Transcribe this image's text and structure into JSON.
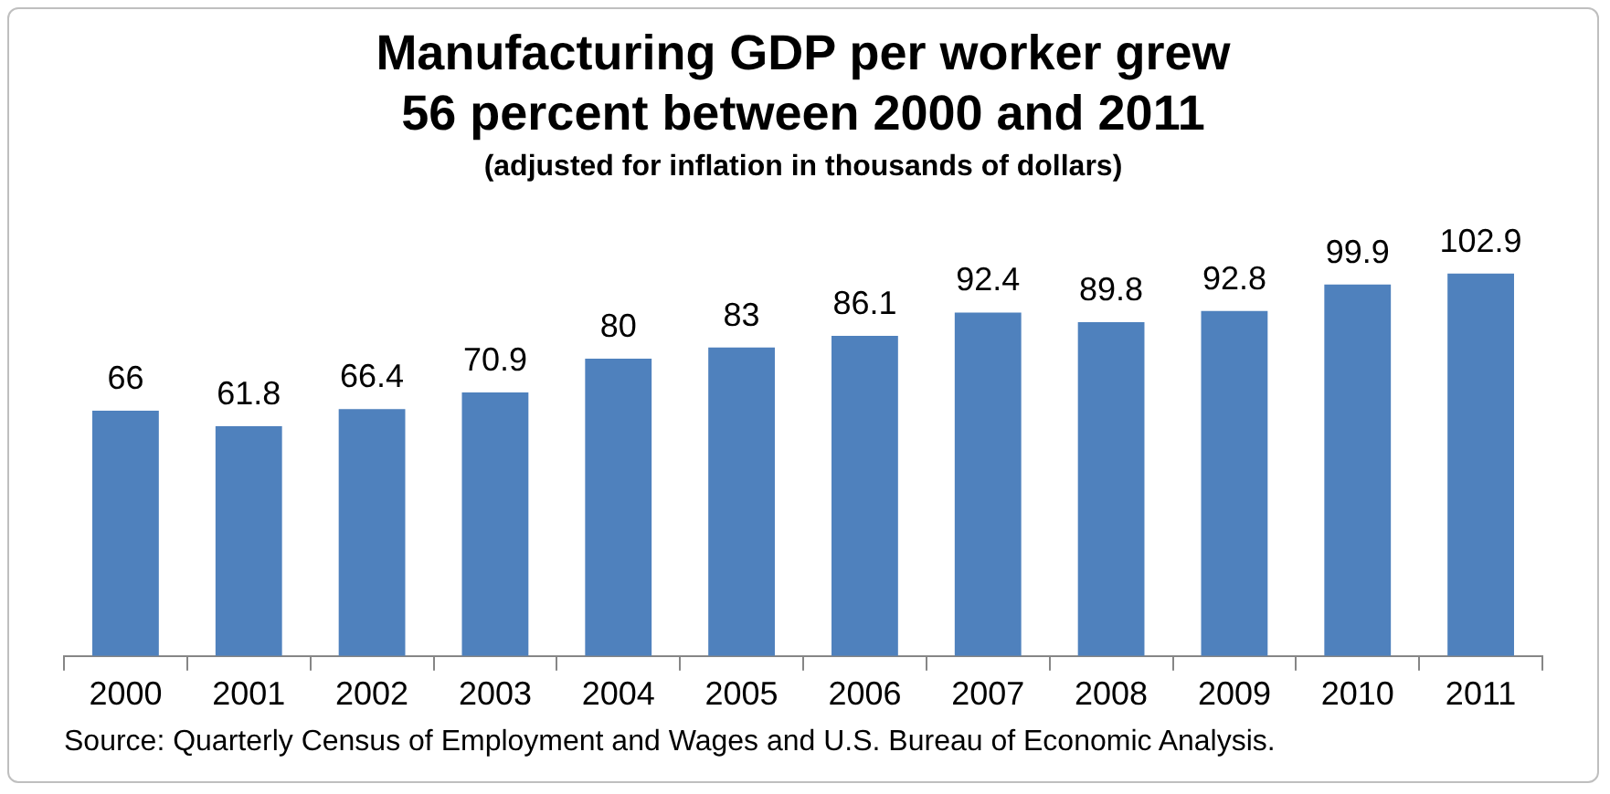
{
  "chart_data": {
    "type": "bar",
    "title": "Manufacturing GDP per worker grew\n56 percent between 2000 and 2011",
    "subtitle": "(adjusted for inflation in thousands of dollars)",
    "categories": [
      "2000",
      "2001",
      "2002",
      "2003",
      "2004",
      "2005",
      "2006",
      "2007",
      "2008",
      "2009",
      "2010",
      "2011"
    ],
    "values": [
      66,
      61.8,
      66.4,
      70.9,
      80,
      83,
      86.1,
      92.4,
      89.8,
      92.8,
      99.9,
      102.9
    ],
    "color": "#4f81bd",
    "tick_labels": "x",
    "data_labels": true,
    "grid": false,
    "legend": false,
    "annotations": [
      "Source: Quarterly Census of Employment and Wages and U.S. Bureau of Economic Analysis."
    ]
  }
}
